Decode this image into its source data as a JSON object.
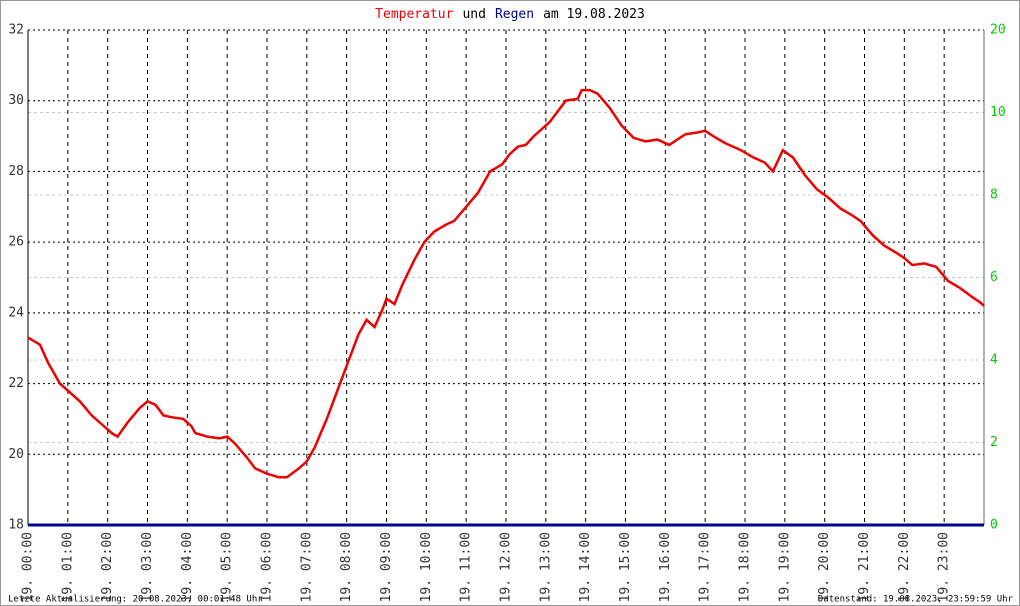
{
  "chart_data": {
    "type": "line",
    "title_parts": [
      {
        "text": "Temperatur",
        "color": "#ee0000"
      },
      {
        "text": "und",
        "color": "#000000"
      },
      {
        "text": "Regen",
        "color": "#000088"
      },
      {
        "text": "am 19.08.2023",
        "color": "#000000"
      }
    ],
    "footer_left": "Letzte Aktualisierung: 20.08.2023, 00:01:48 Uhr",
    "footer_right": "Datenstand: 19.08.2023, 23:59:59 Uhr",
    "xlim": [
      0,
      24
    ],
    "xticks": [
      {
        "value": 0,
        "label": "19. 00:00"
      },
      {
        "value": 1,
        "label": "19. 01:00"
      },
      {
        "value": 2,
        "label": "19. 02:00"
      },
      {
        "value": 3,
        "label": "19. 03:00"
      },
      {
        "value": 4,
        "label": "19. 04:00"
      },
      {
        "value": 5,
        "label": "19. 05:00"
      },
      {
        "value": 6,
        "label": "19. 06:00"
      },
      {
        "value": 7,
        "label": "19. 07:00"
      },
      {
        "value": 8,
        "label": "19. 08:00"
      },
      {
        "value": 9,
        "label": "19. 09:00"
      },
      {
        "value": 10,
        "label": "19. 10:00"
      },
      {
        "value": 11,
        "label": "19. 11:00"
      },
      {
        "value": 12,
        "label": "19. 12:00"
      },
      {
        "value": 13,
        "label": "19. 13:00"
      },
      {
        "value": 14,
        "label": "19. 14:00"
      },
      {
        "value": 15,
        "label": "19. 15:00"
      },
      {
        "value": 16,
        "label": "19. 16:00"
      },
      {
        "value": 17,
        "label": "19. 17:00"
      },
      {
        "value": 18,
        "label": "19. 18:00"
      },
      {
        "value": 19,
        "label": "19. 19:00"
      },
      {
        "value": 20,
        "label": "19. 20:00"
      },
      {
        "value": 21,
        "label": "19. 21:00"
      },
      {
        "value": 22,
        "label": "19. 22:00"
      },
      {
        "value": 23,
        "label": "19. 23:00"
      }
    ],
    "ylim": [
      18,
      32
    ],
    "yticks": [
      18,
      20,
      22,
      24,
      26,
      28,
      30,
      32
    ],
    "y2lim": [
      0,
      12
    ],
    "y2ticks": [
      0,
      2,
      4,
      6,
      8,
      10
    ],
    "y2_top_label": "20",
    "grid": true,
    "series": [
      {
        "name": "Temperatur",
        "color": "#ee0000",
        "x": [
          0,
          0.3,
          0.5,
          0.8,
          1,
          1.3,
          1.6,
          1.9,
          2.1,
          2.25,
          2.5,
          2.8,
          3,
          3.2,
          3.4,
          3.6,
          3.9,
          4.1,
          4.2,
          4.5,
          4.8,
          5,
          5.2,
          5.5,
          5.7,
          6,
          6.3,
          6.5,
          6.8,
          7,
          7.2,
          7.5,
          7.8,
          8.1,
          8.3,
          8.5,
          8.7,
          8.9,
          9,
          9.2,
          9.4,
          9.7,
          9.95,
          10.2,
          10.5,
          10.7,
          11,
          11.3,
          11.6,
          11.9,
          12.1,
          12.3,
          12.5,
          12.7,
          12.9,
          13.1,
          13.3,
          13.5,
          13.8,
          13.9,
          14.1,
          14.3,
          14.6,
          14.9,
          15.2,
          15.5,
          15.8,
          16.1,
          16.3,
          16.5,
          16.8,
          17,
          17.2,
          17.5,
          17.9,
          18.2,
          18.5,
          18.7,
          18.95,
          19.2,
          19.5,
          19.8,
          20.1,
          20.4,
          20.7,
          20.9,
          21.2,
          21.5,
          21.8,
          22,
          22.2,
          22.5,
          22.8,
          23.1,
          23.4,
          23.7,
          23.9,
          24
        ],
        "values": [
          23.3,
          23.1,
          22.6,
          22,
          21.8,
          21.5,
          21.1,
          20.8,
          20.6,
          20.5,
          20.9,
          21.3,
          21.5,
          21.4,
          21.1,
          21.05,
          21,
          20.8,
          20.6,
          20.5,
          20.45,
          20.5,
          20.3,
          19.9,
          19.6,
          19.45,
          19.35,
          19.35,
          19.6,
          19.8,
          20.2,
          21,
          21.9,
          22.8,
          23.4,
          23.8,
          23.6,
          24.1,
          24.4,
          24.25,
          24.8,
          25.5,
          26,
          26.3,
          26.5,
          26.6,
          27,
          27.4,
          28,
          28.2,
          28.5,
          28.7,
          28.75,
          29,
          29.2,
          29.4,
          29.7,
          30,
          30.05,
          30.3,
          30.3,
          30.2,
          29.8,
          29.3,
          28.95,
          28.85,
          28.9,
          28.75,
          28.9,
          29.05,
          29.1,
          29.15,
          29,
          28.8,
          28.6,
          28.4,
          28.25,
          28,
          28.6,
          28.4,
          27.9,
          27.5,
          27.25,
          26.95,
          26.75,
          26.6,
          26.2,
          25.9,
          25.7,
          25.55,
          25.35,
          25.4,
          25.3,
          24.9,
          24.7,
          24.45,
          24.3,
          24.2
        ]
      },
      {
        "name": "Regen",
        "color": "#000088",
        "axis": "y2",
        "x": [
          0,
          24
        ],
        "values": [
          0,
          0
        ]
      }
    ]
  }
}
